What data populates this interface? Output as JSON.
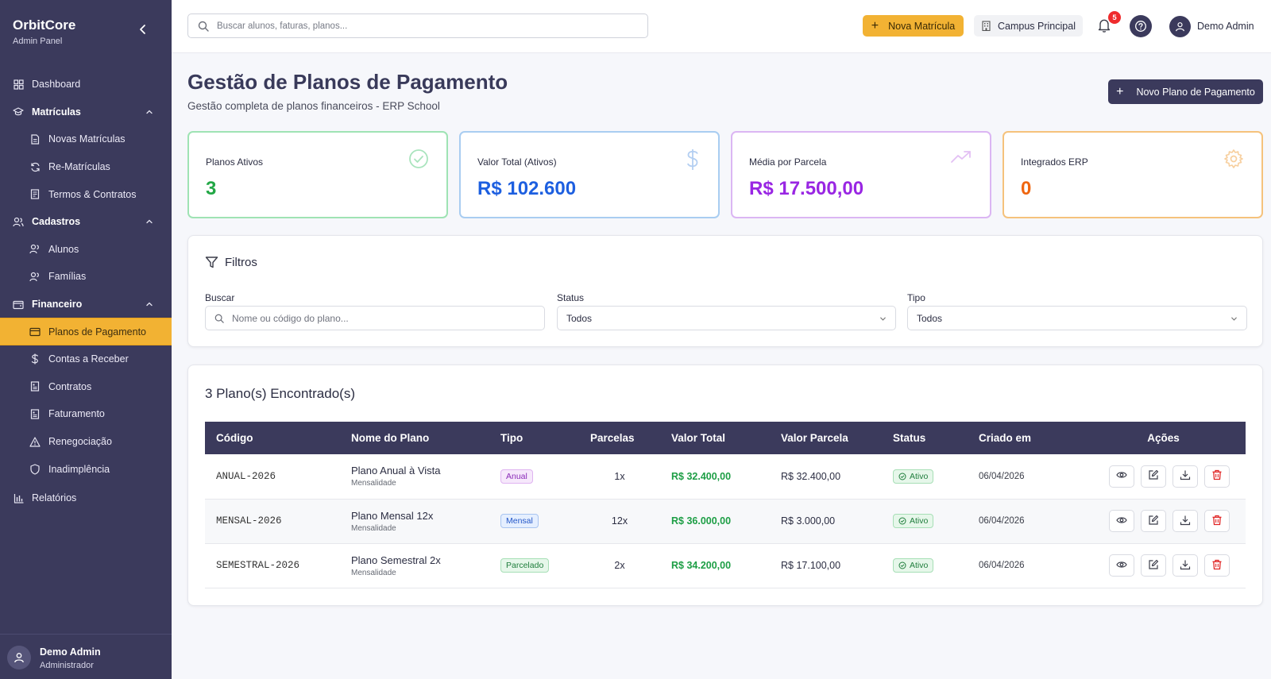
{
  "app": {
    "title": "OrbitCore",
    "subtitle": "Admin Panel"
  },
  "sidebar": {
    "items": [
      {
        "label": "Dashboard"
      },
      {
        "label": "Matrículas"
      },
      {
        "label": "Novas Matrículas"
      },
      {
        "label": "Re-Matrículas"
      },
      {
        "label": "Termos & Contratos"
      },
      {
        "label": "Cadastros"
      },
      {
        "label": "Alunos"
      },
      {
        "label": "Famílias"
      },
      {
        "label": "Financeiro"
      },
      {
        "label": "Planos de Pagamento"
      },
      {
        "label": "Contas a Receber"
      },
      {
        "label": "Contratos"
      },
      {
        "label": "Faturamento"
      },
      {
        "label": "Renegociação"
      },
      {
        "label": "Inadimplência"
      },
      {
        "label": "Relatórios"
      }
    ],
    "user": {
      "name": "Demo Admin",
      "role": "Administrador"
    }
  },
  "topbar": {
    "search_placeholder": "Buscar alunos, faturas, planos...",
    "nova_matricula": "Nova Matrícula",
    "campus": "Campus Principal",
    "notifications": "5",
    "user": "Demo Admin"
  },
  "page": {
    "title": "Gestão de Planos de Pagamento",
    "subtitle": "Gestão completa de planos financeiros - ERP School",
    "new_plan_button": "Novo Plano de Pagamento"
  },
  "stats": [
    {
      "label": "Planos Ativos",
      "value": "3"
    },
    {
      "label": "Valor Total (Ativos)",
      "value": "R$ 102.600"
    },
    {
      "label": "Média por Parcela",
      "value": "R$ 17.500,00"
    },
    {
      "label": "Integrados ERP",
      "value": "0"
    }
  ],
  "filters": {
    "title": "Filtros",
    "search_label": "Buscar",
    "search_placeholder": "Nome ou código do plano...",
    "status_label": "Status",
    "status_value": "Todos",
    "type_label": "Tipo",
    "type_value": "Todos"
  },
  "results": {
    "title": "3 Plano(s) Encontrado(s)",
    "columns": [
      "Código",
      "Nome do Plano",
      "Tipo",
      "Parcelas",
      "Valor Total",
      "Valor Parcela",
      "Status",
      "Criado em",
      "Ações"
    ],
    "rows": [
      {
        "code": "ANUAL-2026",
        "name": "Plano Anual à Vista",
        "sub": "Mensalidade",
        "type": "Anual",
        "installments": "1x",
        "total": "R$ 32.400,00",
        "installment_value": "R$ 32.400,00",
        "status": "Ativo",
        "created": "06/04/2026"
      },
      {
        "code": "MENSAL-2026",
        "name": "Plano Mensal 12x",
        "sub": "Mensalidade",
        "type": "Mensal",
        "installments": "12x",
        "total": "R$ 36.000,00",
        "installment_value": "R$ 3.000,00",
        "status": "Ativo",
        "created": "06/04/2026"
      },
      {
        "code": "SEMESTRAL-2026",
        "name": "Plano Semestral 2x",
        "sub": "Mensalidade",
        "type": "Parcelado",
        "installments": "2x",
        "total": "R$ 34.200,00",
        "installment_value": "R$ 17.100,00",
        "status": "Ativo",
        "created": "06/04/2026"
      }
    ]
  },
  "colors": {
    "sidebar_bg": "#3b3a5c",
    "accent": "#f2b233",
    "green": "#22a745",
    "blue": "#1d5fe0",
    "purple": "#9926e3",
    "orange": "#ef6610",
    "danger": "#e02424"
  },
  "icons": {
    "sidebar": [
      "grid-icon",
      "graduation-cap-icon",
      "file-text-icon",
      "refresh-icon",
      "contract-icon",
      "users-icon",
      "user-icon",
      "users-icon",
      "wallet-icon",
      "credit-card-icon",
      "dollar-icon",
      "document-icon",
      "receipt-icon",
      "alert-triangle-icon",
      "shield-icon",
      "bar-chart-icon"
    ],
    "stats": [
      "check-circle-icon",
      "dollar-icon",
      "trending-up-icon",
      "gear-icon"
    ],
    "row_actions": [
      "eye-icon",
      "edit-icon",
      "download-icon",
      "trash-icon"
    ]
  }
}
